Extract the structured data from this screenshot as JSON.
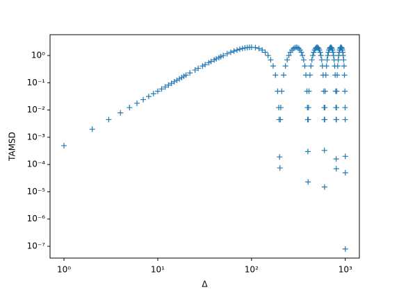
{
  "chart_data": {
    "type": "scatter",
    "marker": "+",
    "color": "#1f77b4",
    "xlabel": "Δ",
    "ylabel": "TAMSD",
    "xscale": "log",
    "yscale": "log",
    "xlim": [
      0.71,
      1413
    ],
    "ylim": [
      3.7e-08,
      5.8
    ],
    "xticks": [
      {
        "value": 1,
        "label": "10⁰"
      },
      {
        "value": 10,
        "label": "10¹"
      },
      {
        "value": 100,
        "label": "10²"
      },
      {
        "value": 1000,
        "label": "10³"
      }
    ],
    "yticks": [
      {
        "value": 1e-07,
        "label": "10⁻⁷"
      },
      {
        "value": 1e-06,
        "label": "10⁻⁶"
      },
      {
        "value": 1e-05,
        "label": "10⁻⁵"
      },
      {
        "value": 0.0001,
        "label": "10⁻⁴"
      },
      {
        "value": 0.001,
        "label": "10⁻³"
      },
      {
        "value": 0.01,
        "label": "10⁻²"
      },
      {
        "value": 0.1,
        "label": "10⁻¹"
      },
      {
        "value": 1,
        "label": "10⁰"
      }
    ],
    "x": [
      1,
      2,
      3,
      4,
      5,
      6,
      7,
      8,
      9,
      10,
      11,
      12,
      13,
      14,
      15,
      16,
      17,
      18,
      19,
      20,
      22,
      25,
      27,
      30,
      32,
      35,
      37,
      40,
      42,
      45,
      47,
      50,
      55,
      60,
      65,
      70,
      75,
      80,
      85,
      90,
      95,
      100,
      110,
      120,
      130,
      140,
      150,
      160,
      170,
      180,
      190,
      195,
      197,
      199,
      201,
      203,
      205,
      210,
      220,
      230,
      240,
      250,
      260,
      270,
      280,
      290,
      300,
      310,
      320,
      330,
      340,
      350,
      360,
      370,
      380,
      390,
      395,
      397,
      399,
      401,
      403,
      405,
      410,
      420,
      430,
      440,
      450,
      460,
      470,
      480,
      490,
      500,
      510,
      520,
      530,
      540,
      550,
      560,
      570,
      580,
      590,
      595,
      597,
      599,
      601,
      603,
      605,
      610,
      620,
      630,
      640,
      650,
      660,
      670,
      680,
      690,
      700,
      710,
      720,
      730,
      740,
      750,
      760,
      770,
      780,
      790,
      795,
      797,
      799,
      801,
      803,
      805,
      810,
      820,
      830,
      840,
      850,
      860,
      870,
      880,
      890,
      900,
      910,
      920,
      930,
      940,
      950,
      960,
      970,
      980,
      990,
      995,
      997,
      999,
      1000,
      1001
    ],
    "values": [
      0.000493,
      0.00197,
      0.00444,
      0.00789,
      0.0123,
      0.0177,
      0.0241,
      0.0315,
      0.0398,
      0.0489,
      0.0591,
      0.0702,
      0.0823,
      0.0951,
      0.109,
      0.1237,
      0.139,
      0.1557,
      0.173,
      0.191,
      0.229,
      0.293,
      0.339,
      0.412,
      0.464,
      0.546,
      0.603,
      0.691,
      0.751,
      0.843,
      0.906,
      1,
      1.156,
      1.309,
      1.454,
      1.588,
      1.707,
      1.809,
      1.891,
      1.951,
      1.988,
      2,
      1.951,
      1.809,
      1.588,
      1.309,
      1,
      0.691,
      0.412,
      0.191,
      0.0489,
      0.0123,
      0.00444,
      0.00019,
      7.5e-05,
      0.00444,
      0.0123,
      0.0489,
      0.191,
      0.412,
      0.691,
      1,
      1.309,
      1.588,
      1.809,
      1.951,
      2,
      1.951,
      1.809,
      1.588,
      1.309,
      1,
      0.691,
      0.412,
      0.191,
      0.0489,
      0.0123,
      0.00444,
      0.0003,
      2.3e-05,
      0.00444,
      0.0123,
      0.0489,
      0.191,
      0.412,
      0.691,
      1,
      1.309,
      1.588,
      1.809,
      1.951,
      2,
      1.951,
      1.809,
      1.588,
      1.309,
      1,
      0.691,
      0.412,
      0.191,
      0.0489,
      0.0123,
      0.00444,
      0.00033,
      1.5e-05,
      0.00444,
      0.0123,
      0.0489,
      0.191,
      0.412,
      0.691,
      1,
      1.309,
      1.588,
      1.809,
      1.951,
      2,
      1.951,
      1.809,
      1.588,
      1.309,
      1,
      0.691,
      0.412,
      0.191,
      0.0489,
      0.0123,
      0.00444,
      0.00016,
      7e-05,
      0.00444,
      0.0123,
      0.0489,
      0.191,
      0.412,
      0.691,
      1,
      1.309,
      1.588,
      1.809,
      1.951,
      2,
      1.951,
      1.809,
      1.588,
      1.309,
      1,
      0.691,
      0.412,
      0.191,
      0.0489,
      0.0123,
      0.00444,
      0.0002,
      8e-08,
      5e-05
    ]
  }
}
